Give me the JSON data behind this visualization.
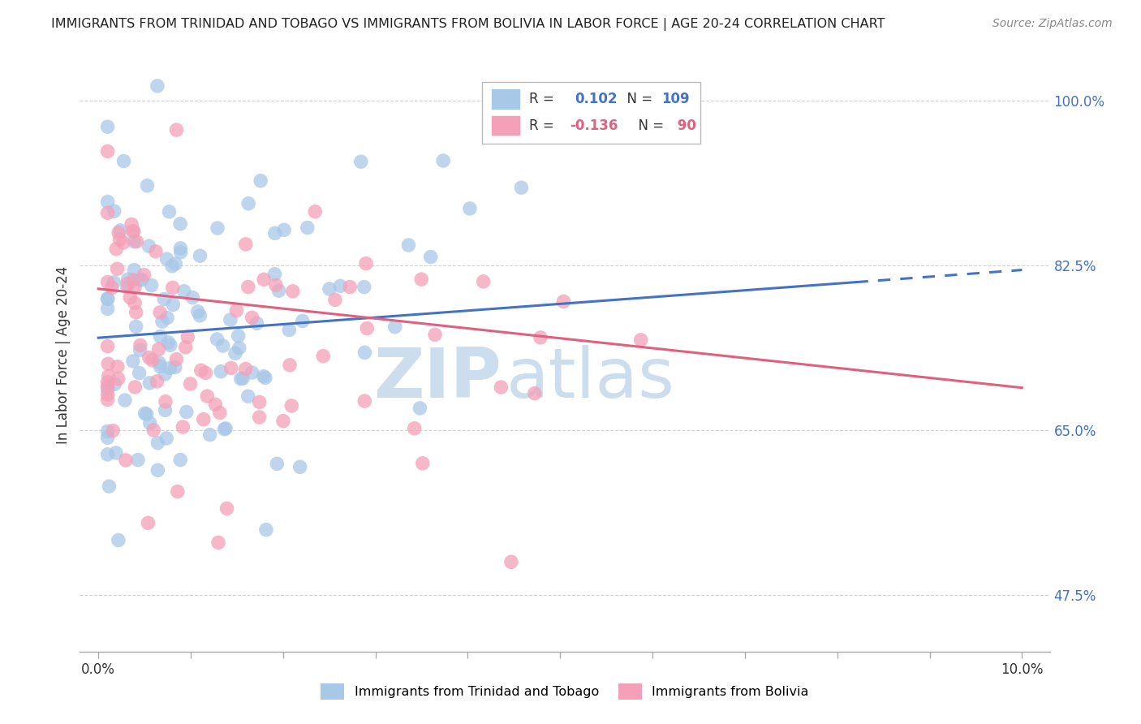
{
  "title": "IMMIGRANTS FROM TRINIDAD AND TOBAGO VS IMMIGRANTS FROM BOLIVIA IN LABOR FORCE | AGE 20-24 CORRELATION CHART",
  "source": "Source: ZipAtlas.com",
  "ylabel": "In Labor Force | Age 20-24",
  "yticks": [
    0.475,
    0.65,
    0.825,
    1.0
  ],
  "ytick_labels": [
    "47.5%",
    "65.0%",
    "82.5%",
    "100.0%"
  ],
  "legend_label_blue": "Immigrants from Trinidad and Tobago",
  "legend_label_pink": "Immigrants from Bolivia",
  "color_blue": "#a8c8e8",
  "color_pink": "#f4a0b8",
  "color_blue_line": "#4472c4",
  "color_pink_line": "#e06080",
  "color_ytick": "#4472c4",
  "watermark_zip": "ZIP",
  "watermark_atlas": "atlas",
  "blue_trend_x0": 0.0,
  "blue_trend_x1": 0.1,
  "blue_trend_y0": 0.748,
  "blue_trend_y1": 0.82,
  "blue_trend_solid_end": 0.082,
  "pink_trend_x0": 0.0,
  "pink_trend_x1": 0.1,
  "pink_trend_y0": 0.8,
  "pink_trend_y1": 0.695,
  "xmin": -0.002,
  "xmax": 0.103,
  "ymin": 0.415,
  "ymax": 1.045,
  "xticks": [
    0.0,
    0.01,
    0.02,
    0.03,
    0.04,
    0.05,
    0.06,
    0.07,
    0.08,
    0.09,
    0.1
  ],
  "xtick_labels_show": [
    "0.0%",
    "",
    "",
    "",
    "",
    "",
    "",
    "",
    "",
    "",
    "10.0%"
  ]
}
